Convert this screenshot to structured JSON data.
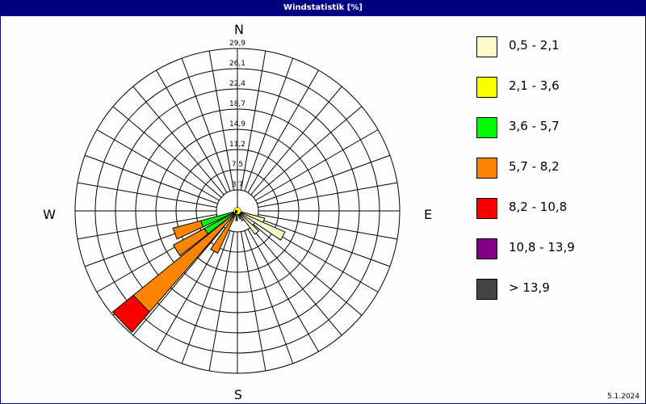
{
  "window": {
    "title": "Windstatistik [%]",
    "date": "5.1.2024"
  },
  "chart_data": {
    "type": "windrose",
    "title": "Windstatistik [%]",
    "compass": {
      "N": "N",
      "E": "E",
      "S": "S",
      "W": "W"
    },
    "ring_labels": [
      "3,7",
      "7,5",
      "11,2",
      "14,9",
      "18,7",
      "22,4",
      "26,1",
      "29,9"
    ],
    "ring_values": [
      3.7,
      7.5,
      11.2,
      14.9,
      18.7,
      22.4,
      26.1,
      29.9
    ],
    "rmax": 29.9,
    "sector_width_deg": 10,
    "classes": [
      {
        "label": "0,5 - 2,1",
        "color": "#fcfcc8"
      },
      {
        "label": "2,1 - 3,6",
        "color": "#fcfc00"
      },
      {
        "label": "3,6 - 5,7",
        "color": "#00fc00"
      },
      {
        "label": "5,7 - 8,2",
        "color": "#fc8400"
      },
      {
        "label": "8,2 - 10,8",
        "color": "#fc0000"
      },
      {
        "label": "10,8 - 13,9",
        "color": "#840084"
      },
      {
        "label": " > 13,9",
        "color": "#444444"
      }
    ],
    "petals": [
      {
        "direction": 110,
        "values": [
          5.2,
          0,
          0,
          0,
          0,
          0,
          0
        ]
      },
      {
        "direction": 119,
        "values": [
          9.6,
          0,
          0,
          0,
          0,
          0,
          0
        ]
      },
      {
        "direction": 138,
        "values": [
          5.4,
          0,
          0,
          0,
          0,
          0,
          0
        ]
      },
      {
        "direction": 150,
        "values": [
          2.0,
          0,
          0,
          0,
          0,
          0,
          0
        ]
      },
      {
        "direction": 160,
        "values": [
          1.5,
          0,
          0,
          0,
          0,
          0,
          0
        ]
      },
      {
        "direction": 185,
        "values": [
          0.3,
          0,
          1.5,
          0,
          0,
          0,
          0
        ]
      },
      {
        "direction": 210,
        "values": [
          0.3,
          0,
          0.5,
          7.8,
          0,
          0,
          0
        ]
      },
      {
        "direction": 226,
        "values": [
          0.3,
          0,
          0.5,
          23.9,
          4.9,
          0,
          0
        ]
      },
      {
        "direction": 237,
        "values": [
          0.3,
          0,
          6.6,
          6.5,
          0,
          0,
          0
        ]
      },
      {
        "direction": 250,
        "values": [
          0.3,
          0,
          6.7,
          5.3,
          0,
          0,
          0
        ]
      }
    ],
    "calm_color": "#fcfc00"
  }
}
